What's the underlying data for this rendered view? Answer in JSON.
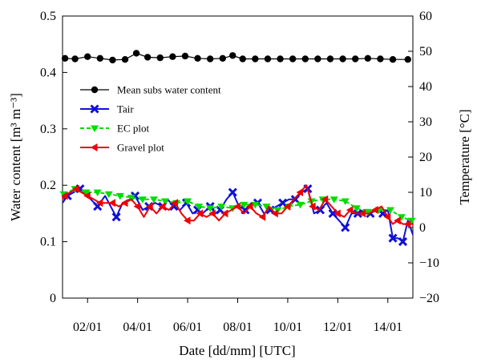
{
  "chart_data": {
    "type": "line",
    "xlabel": "Date [dd/mm] [UTC]",
    "ylabel_left": "Water content [m³ m⁻³]",
    "ylabel_right": "Temperature [°C]",
    "x_ticks": [
      "02/01",
      "04/01",
      "06/01",
      "08/01",
      "10/01",
      "12/01",
      "14/01"
    ],
    "x_tick_days": [
      2,
      4,
      6,
      8,
      10,
      12,
      14
    ],
    "xlim": [
      1.0,
      15.0
    ],
    "ylim_left": [
      0,
      0.5
    ],
    "yticks_left": [
      "0",
      "0.1",
      "0.2",
      "0.3",
      "0.4",
      "0.5"
    ],
    "ylim_right": [
      -20,
      60
    ],
    "yticks_right": [
      "−20",
      "−10",
      "0",
      "10",
      "20",
      "30",
      "40",
      "50",
      "60"
    ],
    "legend_position": "upper-left",
    "grid": false,
    "series": [
      {
        "name": "Mean subs water content",
        "axis": "left",
        "color": "#000000",
        "marker": "circle",
        "marker_days": [
          1.1,
          1.5,
          2.0,
          2.5,
          3.0,
          3.5,
          3.95,
          4.4,
          4.9,
          5.4,
          5.9,
          6.4,
          6.9,
          7.4,
          7.8,
          8.2,
          8.7,
          9.2,
          9.7,
          10.2,
          10.7,
          11.2,
          11.7,
          12.2,
          12.7,
          13.2,
          13.7,
          14.2,
          14.8
        ],
        "x": [
          1.1,
          1.5,
          2.0,
          2.5,
          3.0,
          3.5,
          3.95,
          4.4,
          4.9,
          5.4,
          5.9,
          6.4,
          6.9,
          7.4,
          7.8,
          8.2,
          8.7,
          9.2,
          9.7,
          10.2,
          10.7,
          11.2,
          11.7,
          12.2,
          12.7,
          13.2,
          13.7,
          14.2,
          14.8
        ],
        "y": [
          0.425,
          0.424,
          0.428,
          0.425,
          0.422,
          0.423,
          0.434,
          0.427,
          0.426,
          0.428,
          0.429,
          0.425,
          0.424,
          0.425,
          0.43,
          0.424,
          0.424,
          0.424,
          0.424,
          0.424,
          0.424,
          0.424,
          0.424,
          0.424,
          0.424,
          0.425,
          0.424,
          0.423,
          0.423
        ]
      },
      {
        "name": "Tair",
        "axis": "right",
        "color": "#1010d8",
        "marker": "x",
        "marker_days": [
          1.2,
          1.7,
          2.4,
          3.15,
          3.9,
          4.45,
          5.0,
          5.45,
          5.95,
          6.4,
          6.9,
          7.3,
          7.8,
          8.3,
          8.8,
          9.3,
          9.8,
          10.3,
          10.8,
          11.3,
          11.8,
          12.3,
          12.8,
          13.3,
          13.8,
          14.2,
          14.6
        ],
        "x": [
          1.0,
          1.2,
          1.45,
          1.7,
          2.0,
          2.4,
          2.7,
          3.0,
          3.15,
          3.4,
          3.7,
          3.9,
          4.2,
          4.45,
          4.7,
          5.0,
          5.2,
          5.45,
          5.7,
          5.95,
          6.2,
          6.4,
          6.6,
          6.9,
          7.1,
          7.3,
          7.55,
          7.8,
          8.05,
          8.3,
          8.55,
          8.8,
          9.05,
          9.3,
          9.55,
          9.8,
          10.05,
          10.3,
          10.55,
          10.8,
          11.05,
          11.3,
          11.55,
          11.8,
          12.05,
          12.3,
          12.55,
          12.8,
          13.05,
          13.3,
          13.55,
          13.8,
          14.0,
          14.2,
          14.4,
          14.6,
          14.8,
          15.0
        ],
        "y": [
          7,
          9,
          10,
          11,
          9,
          6,
          9,
          5,
          3,
          7,
          8,
          9,
          5,
          6,
          7,
          6,
          8,
          6,
          5,
          7,
          4,
          5,
          4,
          6,
          4,
          5,
          8,
          10,
          6,
          5,
          7,
          7,
          4,
          5,
          6,
          7,
          8,
          8,
          10,
          11,
          4,
          5,
          7,
          4,
          2,
          0,
          4,
          4,
          5,
          4,
          5,
          4,
          5,
          -3,
          -3,
          -4,
          2,
          -2
        ]
      },
      {
        "name": "EC plot",
        "axis": "right",
        "color": "#00dd00",
        "marker": "triangle-down",
        "marker_days": [
          1.05,
          1.5,
          1.95,
          2.4,
          2.85,
          3.3,
          3.75,
          4.2,
          4.65,
          5.1,
          5.55,
          6.0,
          6.45,
          6.9,
          7.35,
          7.8,
          8.25,
          8.7,
          9.15,
          9.6,
          10.05,
          10.5,
          10.95,
          11.4,
          11.85,
          12.3,
          12.75,
          13.2,
          13.65,
          14.1,
          14.55,
          14.95
        ],
        "x": [
          1.05,
          1.5,
          1.95,
          2.4,
          2.85,
          3.3,
          3.75,
          4.2,
          4.65,
          5.1,
          5.55,
          6.0,
          6.45,
          6.9,
          7.35,
          7.8,
          8.25,
          8.7,
          9.15,
          9.6,
          10.05,
          10.5,
          10.95,
          11.4,
          11.85,
          12.3,
          12.75,
          13.2,
          13.65,
          14.1,
          14.55,
          14.95
        ],
        "y": [
          9.5,
          11,
          10,
          10,
          9.5,
          9,
          8.5,
          8,
          8,
          7.5,
          7,
          7.5,
          6,
          5.5,
          6,
          5.5,
          6.5,
          6.5,
          6,
          5,
          6,
          6.5,
          7.5,
          8,
          8,
          7.5,
          5.5,
          4.5,
          5,
          5,
          3,
          2
        ]
      },
      {
        "name": "Gravel plot",
        "axis": "right",
        "color": "#ee0000",
        "marker": "triangle-left",
        "marker_days": [
          1.1,
          1.55,
          2.0,
          2.5,
          3.0,
          3.5,
          4.0,
          4.5,
          5.0,
          5.5,
          6.0,
          6.5,
          7.0,
          7.5,
          8.0,
          8.5,
          9.0,
          9.5,
          10.0,
          10.5,
          11.0,
          11.5,
          12.0,
          12.5,
          13.0,
          13.5,
          14.0,
          14.4,
          14.8
        ],
        "x": [
          1.0,
          1.1,
          1.3,
          1.55,
          1.75,
          2.0,
          2.25,
          2.5,
          2.75,
          3.0,
          3.25,
          3.5,
          3.75,
          4.0,
          4.25,
          4.5,
          4.75,
          5.0,
          5.25,
          5.5,
          5.75,
          6.0,
          6.25,
          6.5,
          6.75,
          7.0,
          7.25,
          7.5,
          7.75,
          8.0,
          8.25,
          8.5,
          8.75,
          9.0,
          9.25,
          9.5,
          9.75,
          10.0,
          10.25,
          10.5,
          10.75,
          11.0,
          11.25,
          11.5,
          11.75,
          12.0,
          12.25,
          12.5,
          12.75,
          13.0,
          13.25,
          13.5,
          13.75,
          14.0,
          14.2,
          14.4,
          14.6,
          14.8,
          15.0
        ],
        "y": [
          8,
          9,
          10,
          11,
          10,
          9,
          8,
          7,
          7,
          7,
          6,
          7,
          8,
          6,
          3,
          6,
          4,
          6,
          5,
          7,
          4,
          2,
          2,
          4,
          3,
          4,
          2,
          4,
          5,
          6,
          4,
          6,
          4,
          3,
          6,
          4,
          4,
          6,
          8,
          10,
          12,
          6,
          5,
          8,
          6,
          4,
          3,
          5,
          4,
          4,
          4,
          5,
          6,
          3,
          1,
          2,
          1,
          1,
          1
        ]
      }
    ]
  }
}
